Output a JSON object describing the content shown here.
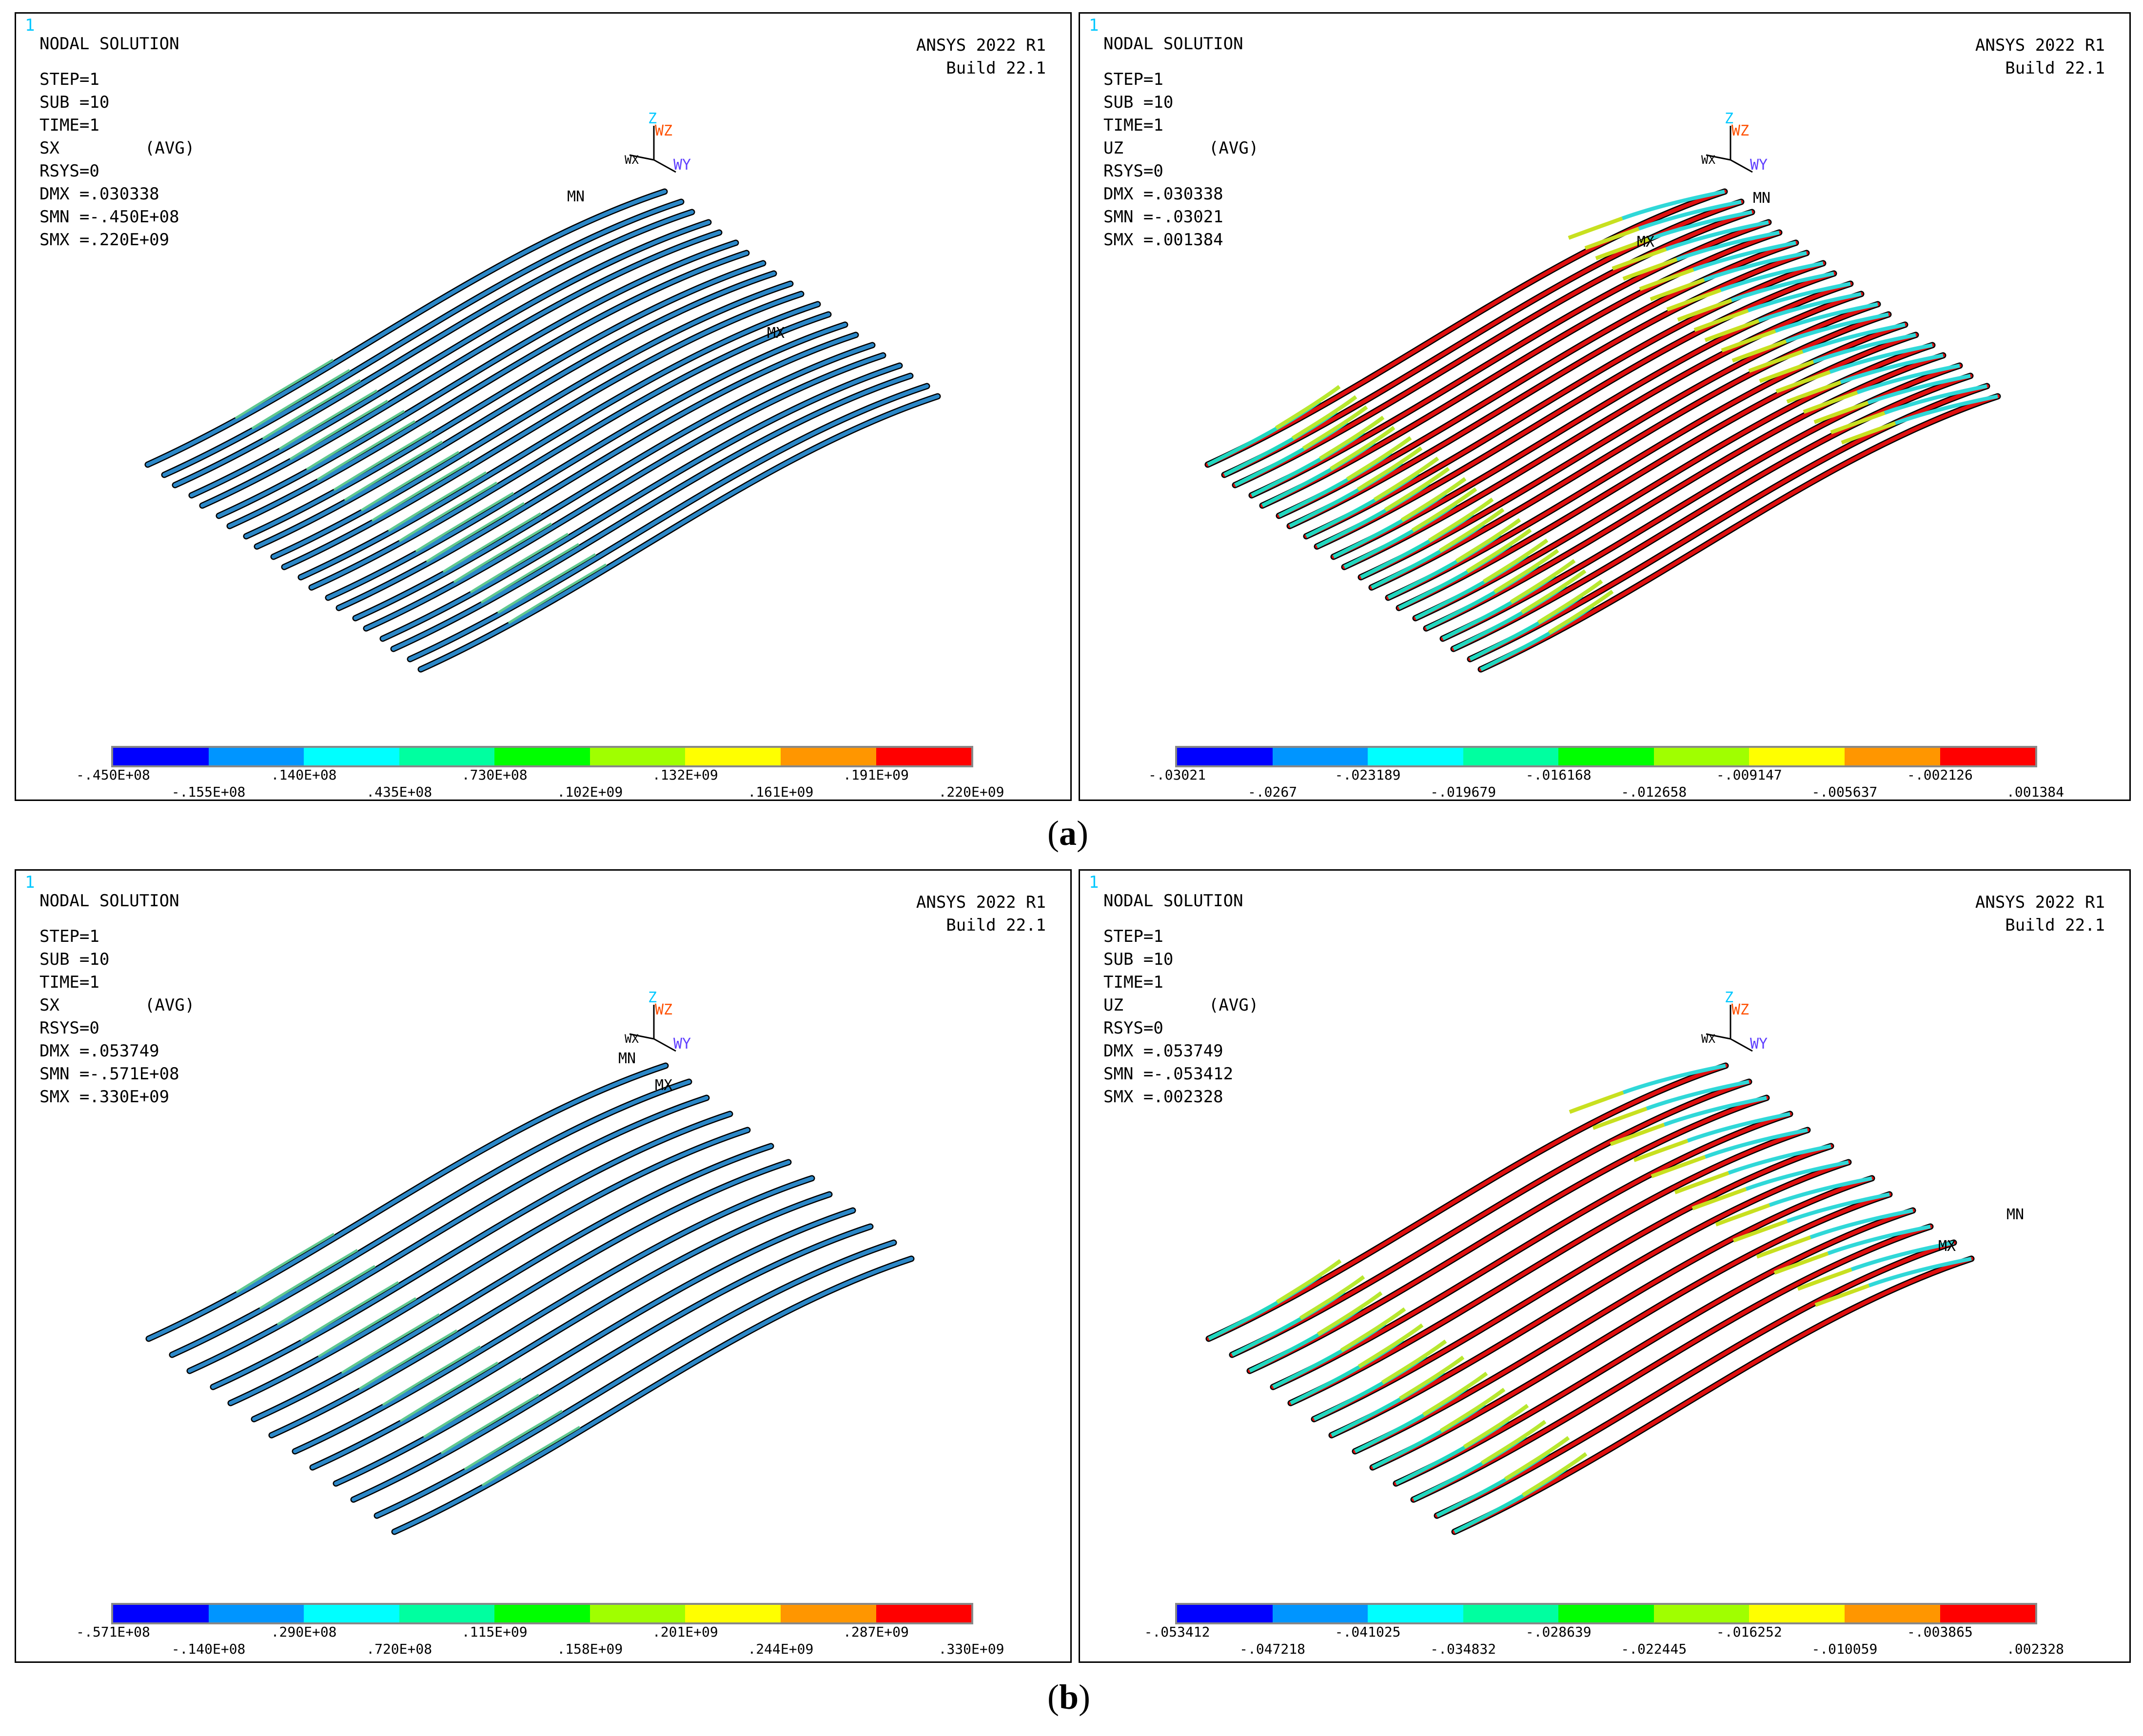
{
  "captions": {
    "a_open": "(",
    "a_letter": "a",
    "a_close": ")",
    "b_open": "(",
    "b_letter": "b",
    "b_close": ")"
  },
  "legend_colors": [
    "#0000ff",
    "#0095ff",
    "#00ffff",
    "#00ffa0",
    "#00ff00",
    "#a0ff00",
    "#ffff00",
    "#ff9600",
    "#ff0000"
  ],
  "panels": [
    {
      "id": "a-left",
      "window": "1",
      "title": "NODAL SOLUTION",
      "brand1": "ANSYS 2022 R1",
      "brand2": "Build 22.1",
      "step": "STEP=1",
      "sub": "SUB =10",
      "time": "TIME=1",
      "quantity": "SX",
      "avg": "(AVG)",
      "rsys": "RSYS=0",
      "dmx": "DMX =.030338",
      "smn": "SMN =-.450E+08",
      "smx": "SMX =.220E+09",
      "mn_label": "MN",
      "mx_label": "MX",
      "ticks": [
        ".450E+08",
        "-.155E+08",
        ".140E+08",
        ".435E+08",
        ".730E+08",
        ".102E+09",
        ".132E+09",
        ".161E+09",
        ".191E+09",
        ".220E+09"
      ],
      "first_tick_prefix": "-"
    },
    {
      "id": "a-right",
      "window": "1",
      "title": "NODAL SOLUTION",
      "brand1": "ANSYS 2022 R1",
      "brand2": "Build 22.1",
      "step": "STEP=1",
      "sub": "SUB =10",
      "time": "TIME=1",
      "quantity": "UZ",
      "avg": "(AVG)",
      "rsys": "RSYS=0",
      "dmx": "DMX =.030338",
      "smn": "SMN =-.03021",
      "smx": "SMX =.001384",
      "mn_label": "MN",
      "mx_label": "MX",
      "ticks": [
        "-.03021",
        "-.0267",
        "-.023189",
        "-.019679",
        "-.016168",
        "-.012658",
        "-.009147",
        "-.005637",
        "-.002126",
        ".001384"
      ],
      "first_tick_prefix": ""
    },
    {
      "id": "b-left",
      "window": "1",
      "title": "NODAL SOLUTION",
      "brand1": "ANSYS 2022 R1",
      "brand2": "Build 22.1",
      "step": "STEP=1",
      "sub": "SUB =10",
      "time": "TIME=1",
      "quantity": "SX",
      "avg": "(AVG)",
      "rsys": "RSYS=0",
      "dmx": "DMX =.053749",
      "smn": "SMN =-.571E+08",
      "smx": "SMX =.330E+09",
      "mn_label": "MN",
      "mx_label": "MX",
      "ticks": [
        "-.571E+08",
        "-.140E+08",
        ".290E+08",
        ".720E+08",
        ".115E+09",
        ".158E+09",
        ".201E+09",
        ".244E+09",
        ".287E+09",
        ".330E+09"
      ],
      "first_tick_prefix": ""
    },
    {
      "id": "b-right",
      "window": "1",
      "title": "NODAL SOLUTION",
      "brand1": "ANSYS 2022 R1",
      "brand2": "Build 22.1",
      "step": "STEP=1",
      "sub": "SUB =10",
      "time": "TIME=1",
      "quantity": "UZ",
      "avg": "(AVG)",
      "rsys": "RSYS=0",
      "dmx": "DMX =.053749",
      "smn": "SMN =-.053412",
      "smx": "SMX =.002328",
      "mn_label": "MN",
      "mx_label": "MX",
      "ticks": [
        "-.053412",
        "-.047218",
        "-.041025",
        "-.034832",
        "-.028639",
        "-.022445",
        "-.016252",
        "-.010059",
        "-.003865",
        ".002328"
      ],
      "first_tick_prefix": ""
    }
  ],
  "triad": {
    "z": "Z",
    "wz": "WZ",
    "wy": "WY",
    "wx": "WX"
  }
}
